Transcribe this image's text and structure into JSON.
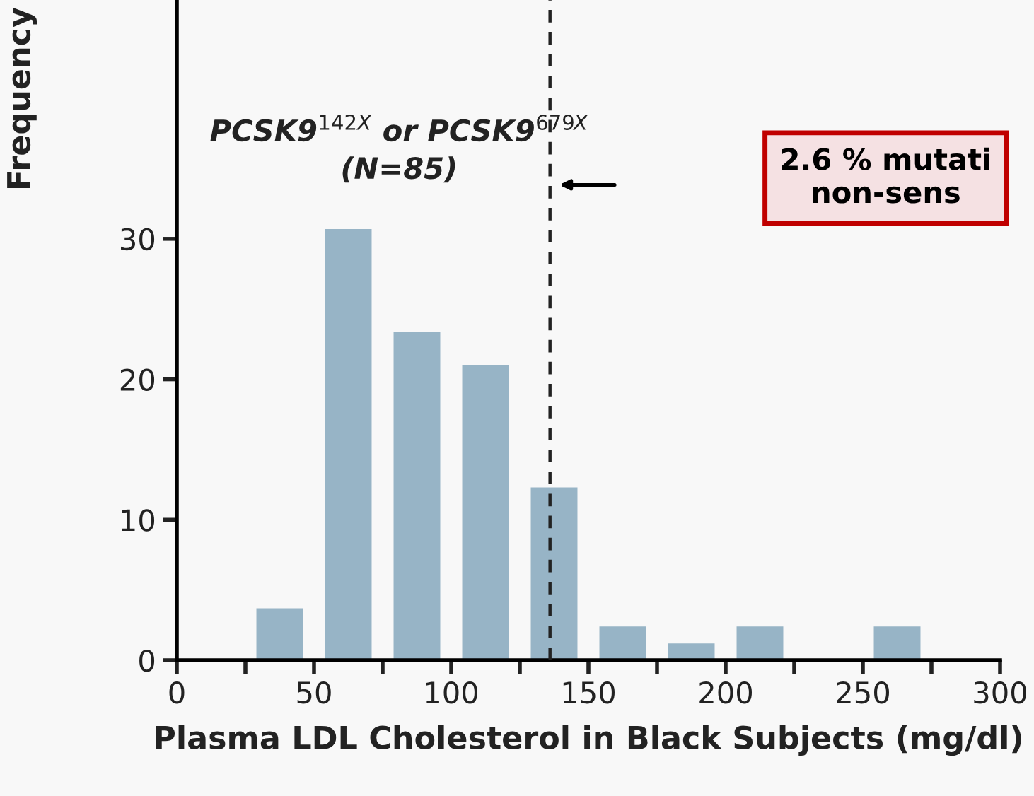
{
  "chart_data": {
    "type": "histogram",
    "title": "PCSK9$^{142X}$ or PCSK9$^{679X}$\n(N=85)",
    "xlabel": "Plasma LDL Cholesterol in Black Subjects (mg/dl)",
    "ylabel": "Frequency",
    "bins": [
      25,
      50,
      75,
      100,
      125,
      150,
      175,
      200,
      225,
      250,
      275
    ],
    "values": [
      3.7,
      30.7,
      23.4,
      21.0,
      12.3,
      2.4,
      1.2,
      2.4,
      0,
      2.4
    ],
    "color": "#97b4c6",
    "xlim": [
      0,
      300
    ],
    "xticks": [
      0,
      {
        "value": 25,
        "label": null
      },
      50,
      {
        "value": 75,
        "label": null
      },
      100,
      {
        "value": 125,
        "label": null
      },
      150,
      {
        "value": 175,
        "label": null
      },
      200,
      {
        "value": 225,
        "label": null
      },
      250,
      {
        "value": 275,
        "label": null
      },
      300
    ],
    "ylim": [
      0,
      47
    ],
    "yticks": [
      0,
      10,
      20,
      30
    ],
    "ref_lines": [
      {
        "axis": "x",
        "value": 136,
        "color": "#222222",
        "line_style": "dashed"
      }
    ],
    "annotations": [
      "2.6 % mutati\nnon-sens"
    ],
    "grid": false,
    "legend": false
  }
}
